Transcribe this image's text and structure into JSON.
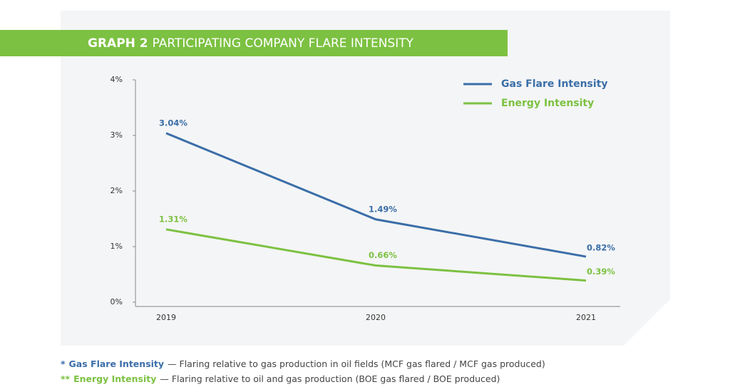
{
  "chart_data": {
    "type": "line",
    "title_number": "GRAPH 2",
    "title": "PARTICIPATING COMPANY FLARE INTENSITY",
    "categories": [
      "2019",
      "2020",
      "2021"
    ],
    "series": [
      {
        "name": "Gas Flare Intensity",
        "color": "#3b6ea8",
        "values": [
          3.04,
          1.49,
          0.82
        ],
        "value_labels": [
          "3.04%",
          "1.49%",
          "0.82%"
        ]
      },
      {
        "name": "Energy Intensity",
        "color": "#7cc142",
        "values": [
          1.31,
          0.66,
          0.39
        ],
        "value_labels": [
          "1.31%",
          "0.66%",
          "0.39%"
        ]
      }
    ],
    "ylim": [
      0,
      4
    ],
    "yticks": [
      {
        "value": 0,
        "label": "0%"
      },
      {
        "value": 1,
        "label": "1%"
      },
      {
        "value": 2,
        "label": "2%"
      },
      {
        "value": 3,
        "label": "3%"
      },
      {
        "value": 4,
        "label": "4%"
      }
    ],
    "legend": "top-right"
  },
  "footnotes": [
    {
      "marker": "*",
      "term": "Gas Flare Intensity",
      "text": "— Flaring relative to gas production in oil fields (MCF gas flared / MCF gas produced)"
    },
    {
      "marker": "**",
      "term": "Energy Intensity",
      "text": "— Flaring relative to oil and gas production (BOE gas flared / BOE produced)"
    }
  ]
}
